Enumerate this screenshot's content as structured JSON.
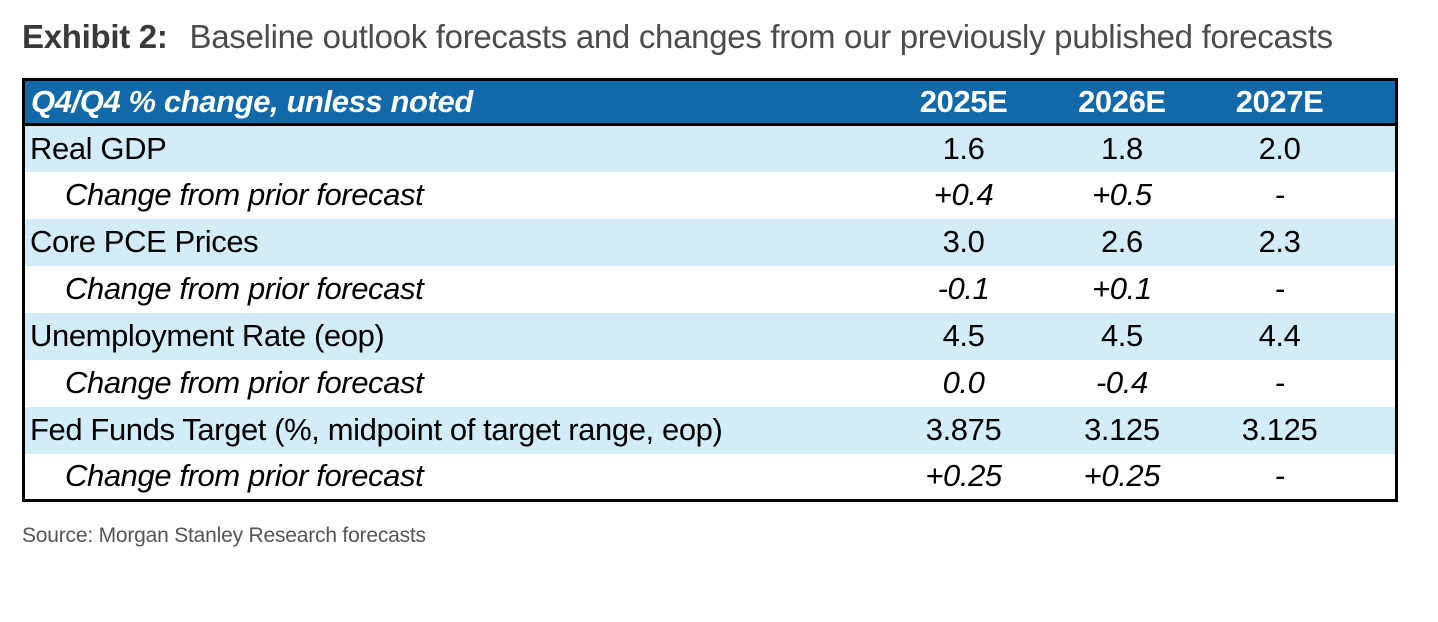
{
  "title": {
    "exhibit": "Exhibit 2:",
    "text": "Baseline outlook forecasts and changes from our previously published forecasts"
  },
  "table": {
    "header_label": "Q4/Q4 % change, unless noted",
    "columns": [
      "2025E",
      "2026E",
      "2027E"
    ],
    "rows": [
      {
        "label": "Real GDP",
        "kind": "metric",
        "values": [
          "1.6",
          "1.8",
          "2.0"
        ]
      },
      {
        "label": "Change from prior forecast",
        "kind": "change",
        "values": [
          "+0.4",
          "+0.5",
          "-"
        ]
      },
      {
        "label": "Core PCE Prices",
        "kind": "metric",
        "values": [
          "3.0",
          "2.6",
          "2.3"
        ]
      },
      {
        "label": "Change from prior forecast",
        "kind": "change",
        "values": [
          "-0.1",
          "+0.1",
          "-"
        ]
      },
      {
        "label": "Unemployment Rate (eop)",
        "kind": "metric",
        "values": [
          "4.5",
          "4.5",
          "4.4"
        ]
      },
      {
        "label": "Change from prior forecast",
        "kind": "change",
        "values": [
          "0.0",
          "-0.4",
          "-"
        ]
      },
      {
        "label": "Fed Funds Target (%, midpoint of target range, eop)",
        "kind": "metric",
        "values": [
          "3.875",
          "3.125",
          "3.125"
        ]
      },
      {
        "label": "Change from prior forecast",
        "kind": "change",
        "values": [
          "+0.25",
          "+0.25",
          "-"
        ]
      }
    ]
  },
  "source": "Source: Morgan Stanley Research forecasts",
  "colors": {
    "header_blue": "#1269a9",
    "row_blue": "#d2ecf8",
    "border_black": "#000000"
  },
  "chart_data": {
    "type": "table",
    "title": "Exhibit 2: Baseline outlook forecasts and changes from our previously published forecasts",
    "columns": [
      "Q4/Q4 % change, unless noted",
      "2025E",
      "2026E",
      "2027E"
    ],
    "rows": [
      [
        "Real GDP",
        "1.6",
        "1.8",
        "2.0"
      ],
      [
        "Change from prior forecast",
        "+0.4",
        "+0.5",
        "-"
      ],
      [
        "Core PCE Prices",
        "3.0",
        "2.6",
        "2.3"
      ],
      [
        "Change from prior forecast",
        "-0.1",
        "+0.1",
        "-"
      ],
      [
        "Unemployment Rate (eop)",
        "4.5",
        "4.5",
        "4.4"
      ],
      [
        "Change from prior forecast",
        "0.0",
        "-0.4",
        "-"
      ],
      [
        "Fed Funds Target (%, midpoint of target range, eop)",
        "3.875",
        "3.125",
        "3.125"
      ],
      [
        "Change from prior forecast",
        "+0.25",
        "+0.25",
        "-"
      ]
    ],
    "source": "Source: Morgan Stanley Research forecasts",
    "layout_hints": {
      "header_background": "#1269a9",
      "metric_row_background": "#d2ecf8",
      "change_row_background": "#ffffff",
      "change_rows_italic": true,
      "value_alignment": "center"
    }
  }
}
